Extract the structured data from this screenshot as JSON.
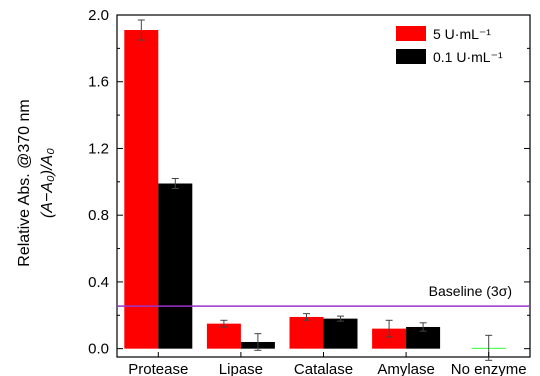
{
  "chart_data": {
    "type": "bar",
    "categories": [
      "Protease",
      "Lipase",
      "Catalase",
      "Amylase",
      "No enzyme"
    ],
    "series": [
      {
        "name": "5 U·mL⁻¹",
        "color": "#ff0000",
        "values": [
          1.91,
          0.15,
          0.19,
          0.12,
          null
        ],
        "errors": [
          0.06,
          0.02,
          0.02,
          0.05,
          null
        ]
      },
      {
        "name": "0.1 U·mL⁻¹",
        "color": "#000000",
        "values": [
          0.99,
          0.04,
          0.18,
          0.13,
          null
        ],
        "errors": [
          0.03,
          0.05,
          0.015,
          0.025,
          null
        ]
      }
    ],
    "no_enzyme": {
      "value": 0.005,
      "error": 0.075,
      "color": "#33ff33"
    },
    "baseline": {
      "value": 0.255,
      "label": "Baseline (3σ)",
      "color": "#9933cc"
    },
    "ylim": [
      -0.05,
      2.0
    ],
    "yticks": [
      "0.0",
      "0.4",
      "0.8",
      "1.2",
      "1.6",
      "2.0"
    ],
    "ylabel_line1": "Relative Abs. @370 nm",
    "ylabel_line2": "(A−A₀)/A₀",
    "legend_position": "top-right",
    "grid": false
  }
}
